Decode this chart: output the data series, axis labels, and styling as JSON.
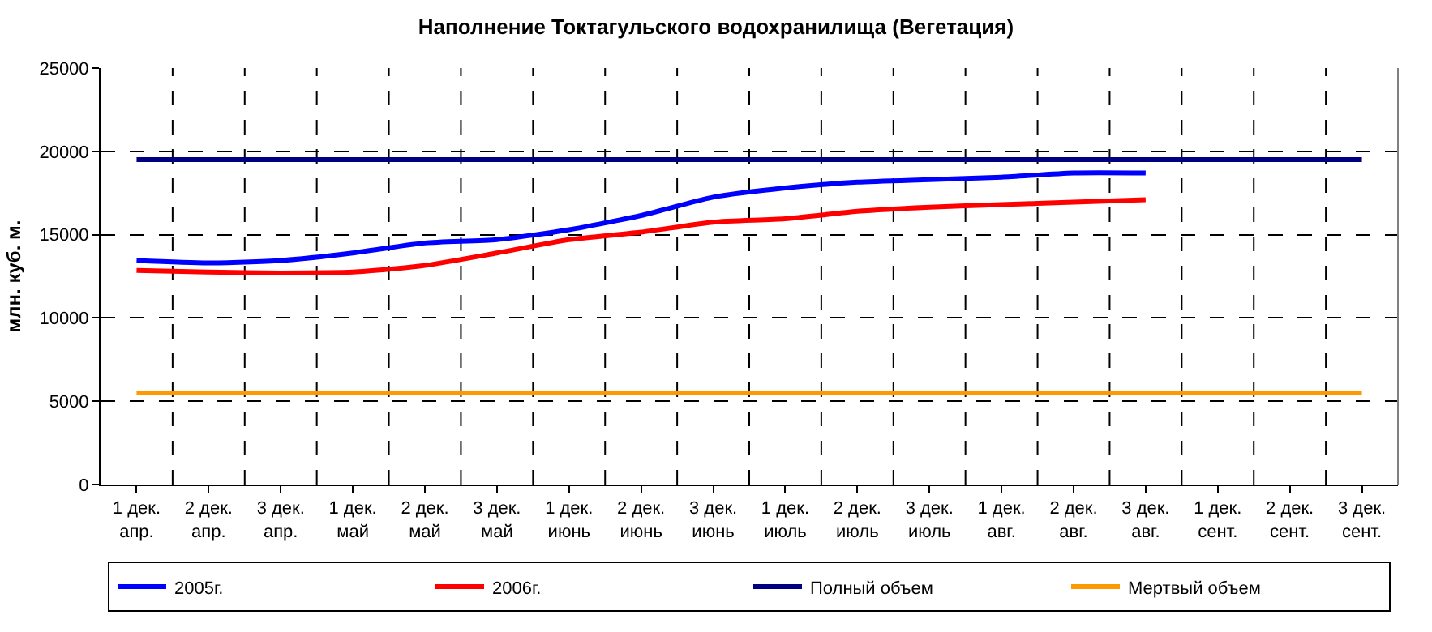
{
  "chart_data": {
    "type": "line",
    "title": "Наполнение Токтагульского водохранилища (Вегетация)",
    "ylabel": "млн. куб. м.",
    "categories": [
      "1 дек. апр.",
      "2 дек. апр.",
      "3 дек. апр.",
      "1 дек. май",
      "2 дек. май",
      "3 дек. май",
      "1 дек. июнь",
      "2 дек. июнь",
      "3 дек. июнь",
      "1 дек. июль",
      "2 дек. июль",
      "3 дек. июль",
      "1 дек. авг.",
      "2 дек. авг.",
      "3 дек. авг.",
      "1 дек. сент.",
      "2 дек. сент.",
      "3 дек. сент."
    ],
    "series": [
      {
        "name": "2005г.",
        "color": "#0000ff",
        "values": [
          13450,
          13300,
          13450,
          13900,
          14500,
          14700,
          15300,
          16150,
          17250,
          17800,
          18150,
          18300,
          18450,
          18700,
          18700,
          null,
          null,
          null
        ]
      },
      {
        "name": "2006г.",
        "color": "#ff0000",
        "values": [
          12850,
          12750,
          12700,
          12750,
          13150,
          13900,
          14700,
          15150,
          15750,
          15950,
          16400,
          16650,
          16800,
          16950,
          17100,
          null,
          null,
          null
        ]
      },
      {
        "name": "Полный объем",
        "color": "#000080",
        "values": [
          19500,
          19500,
          19500,
          19500,
          19500,
          19500,
          19500,
          19500,
          19500,
          19500,
          19500,
          19500,
          19500,
          19500,
          19500,
          19500,
          19500,
          19500
        ]
      },
      {
        "name": "Мертвый объем",
        "color": "#ff9900",
        "values": [
          5500,
          5500,
          5500,
          5500,
          5500,
          5500,
          5500,
          5500,
          5500,
          5500,
          5500,
          5500,
          5500,
          5500,
          5500,
          5500,
          5500,
          5500
        ]
      }
    ],
    "ylim": [
      0,
      25000
    ],
    "yticks": [
      0,
      5000,
      10000,
      15000,
      20000,
      25000
    ],
    "grid": true,
    "legend": "bottom",
    "marker": "none",
    "line_style": "solid"
  }
}
